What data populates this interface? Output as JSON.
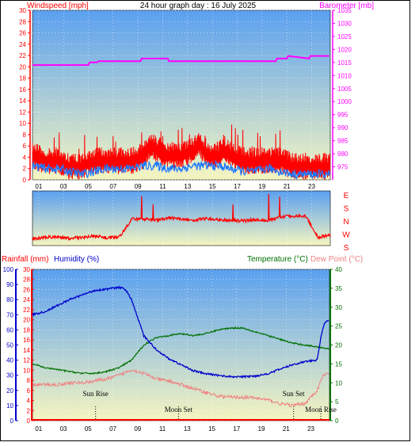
{
  "header": {
    "left_title": "Windspeed [mph]",
    "center_title": "24 hour graph day : 16 July 2025",
    "right_title": "Barometer [mb]"
  },
  "colors": {
    "wind": "#ff0000",
    "wind_avg": "#1e78ff",
    "barometer": "#ff00ff",
    "direction": "#ff0000",
    "humidity": "#0000cc",
    "temperature": "#007000",
    "dewpoint": "#f08080",
    "rain_axis": "#ff0000",
    "panel_top": "#5aa0f0",
    "panel_bottom": "#f5f5c0"
  },
  "chart_data": [
    {
      "type": "line",
      "name": "wind-barometer",
      "xlabel": "",
      "x_ticks": [
        "01",
        "03",
        "05",
        "07",
        "09",
        "11",
        "13",
        "15",
        "17",
        "19",
        "21",
        "23"
      ],
      "left_axis": {
        "label": "Windspeed [mph]",
        "ylim": [
          0,
          30
        ],
        "ticks": [
          "0",
          "2",
          "4",
          "6",
          "8",
          "10",
          "12",
          "14",
          "16",
          "18",
          "20",
          "22",
          "24",
          "26",
          "28",
          "30"
        ]
      },
      "right_axis": {
        "label": "Barometer [mb]",
        "ylim": [
          970,
          1035
        ],
        "ticks": [
          "975",
          "980",
          "985",
          "990",
          "995",
          "1000",
          "1005",
          "1010",
          "1015",
          "1020",
          "1025",
          "1030",
          "1035"
        ]
      },
      "series": [
        {
          "name": "Windspeed [mph]",
          "axis": "left",
          "x": [
            0,
            1,
            2,
            3,
            4,
            5,
            6,
            7,
            8,
            9,
            9.5,
            10,
            11,
            12,
            13,
            13.5,
            14,
            15,
            15.5,
            16,
            17,
            18,
            19,
            20,
            21,
            22,
            23,
            24
          ],
          "y": [
            5,
            4,
            4,
            3,
            3,
            4,
            4,
            4,
            4,
            5,
            7,
            6,
            5,
            5,
            6,
            7,
            5,
            5,
            6,
            5,
            4,
            4,
            4,
            4,
            3,
            3,
            3,
            3
          ]
        },
        {
          "name": "Windspeed avg",
          "axis": "left",
          "x": [
            0,
            1,
            2,
            3,
            4,
            5,
            6,
            7,
            8,
            9,
            10,
            11,
            12,
            13,
            14,
            15,
            16,
            17,
            18,
            19,
            20,
            21,
            22,
            23,
            24
          ],
          "y": [
            2.5,
            2,
            2,
            1.5,
            1,
            1.5,
            2,
            2,
            2,
            2.5,
            2.5,
            2,
            2,
            2.5,
            2.5,
            2.5,
            2,
            1.5,
            1.5,
            2,
            1.5,
            1,
            1,
            1,
            1
          ]
        },
        {
          "name": "Barometer [mb]",
          "axis": "right",
          "x": [
            0,
            4.5,
            4.6,
            5.2,
            5.3,
            8.7,
            8.8,
            10.9,
            11,
            19.6,
            19.7,
            20.5,
            20.6,
            22.3,
            22.4,
            23.9
          ],
          "y": [
            1014,
            1014,
            1015,
            1015,
            1015.5,
            1015.5,
            1016.5,
            1016.5,
            1015.5,
            1015.5,
            1016.5,
            1016.5,
            1017.5,
            1016.5,
            1017.5,
            1017.5
          ]
        }
      ]
    },
    {
      "type": "line",
      "name": "wind-direction",
      "y_ticks": [
        "E",
        "S",
        "N",
        "W",
        "S"
      ],
      "series": [
        {
          "name": "Wind direction",
          "x": [
            0,
            1,
            2,
            3,
            4,
            5,
            6,
            7,
            8,
            9,
            10,
            11,
            12,
            13,
            14,
            15,
            16,
            17,
            18,
            19,
            20,
            21,
            22,
            23,
            24
          ],
          "y": [
            0.88,
            0.85,
            0.85,
            0.87,
            0.85,
            0.82,
            0.86,
            0.84,
            0.52,
            0.51,
            0.53,
            0.49,
            0.52,
            0.53,
            0.51,
            0.53,
            0.53,
            0.55,
            0.52,
            0.54,
            0.48,
            0.46,
            0.45,
            0.85,
            0.8
          ]
        }
      ]
    },
    {
      "type": "line",
      "name": "rain-humidity-temperature",
      "x_ticks": [
        "01",
        "03",
        "05",
        "07",
        "09",
        "11",
        "13",
        "15",
        "17",
        "19",
        "21",
        "23"
      ],
      "rain_axis": {
        "label": "Rainfall (mm)",
        "ylim": [
          0,
          30
        ],
        "ticks": [
          "0",
          "2",
          "4",
          "6",
          "8",
          "10",
          "12",
          "14",
          "16",
          "18",
          "20",
          "22",
          "24",
          "26",
          "28",
          "30"
        ]
      },
      "humidity_axis": {
        "label": "Humidity (%)",
        "ylim": [
          0,
          100
        ],
        "ticks": [
          "0",
          "10",
          "20",
          "30",
          "40",
          "50",
          "60",
          "70",
          "80",
          "90",
          "100"
        ]
      },
      "temperature_axis": {
        "label": "Temperature (°C)",
        "ylim": [
          0,
          40
        ],
        "ticks": [
          "0",
          "5",
          "10",
          "15",
          "20",
          "25",
          "30",
          "35",
          "40"
        ]
      },
      "dewpoint_label": "Dew Point (°C)",
      "series": [
        {
          "name": "Humidity (%)",
          "axis": "humidity",
          "x": [
            0,
            1,
            2,
            3,
            4,
            5,
            6,
            7,
            7.5,
            8,
            8.5,
            9,
            10,
            11,
            12,
            13,
            14,
            15,
            16,
            17,
            18,
            19,
            20,
            21,
            22,
            23,
            23.3,
            23.6,
            24
          ],
          "y": [
            70,
            72,
            76,
            80,
            83,
            86,
            87,
            88,
            87,
            80,
            68,
            56,
            47,
            41,
            37,
            33,
            31,
            30,
            29,
            29,
            29.5,
            31,
            34,
            37,
            39,
            40,
            55,
            65,
            66
          ]
        },
        {
          "name": "Temperature (°C)",
          "axis": "temperature",
          "x": [
            0,
            1,
            2,
            3,
            4,
            5,
            6,
            7,
            8,
            9,
            10,
            11,
            12,
            13,
            14,
            15,
            16,
            17,
            18,
            19,
            20,
            21,
            22,
            23,
            24
          ],
          "y": [
            15,
            14,
            13.5,
            13,
            12.5,
            12.5,
            13,
            14,
            16,
            20,
            22,
            22.5,
            23,
            22.5,
            23,
            24,
            24.5,
            24.5,
            23.5,
            22.5,
            21.5,
            20.5,
            20,
            19.5,
            19
          ]
        },
        {
          "name": "Dew Point (°C)",
          "axis": "temperature",
          "x": [
            0,
            1,
            2,
            3,
            4,
            5,
            6,
            7,
            8,
            9,
            10,
            11,
            12,
            13,
            14,
            15,
            16,
            17,
            18,
            19,
            20,
            21,
            22,
            23,
            23.5,
            24
          ],
          "y": [
            9.5,
            9.5,
            9.5,
            10,
            10,
            10.5,
            11,
            12,
            13.5,
            12.5,
            11,
            10.5,
            9.5,
            8.5,
            7.5,
            6.5,
            6.2,
            6.2,
            6,
            5.5,
            4.5,
            4,
            4.5,
            8,
            12,
            12.5
          ]
        },
        {
          "name": "Rainfall (mm)",
          "axis": "rain",
          "x": [
            0,
            24
          ],
          "y": [
            0,
            0
          ]
        }
      ],
      "annotations": [
        {
          "label": "Sun Rise",
          "hour": 5.1
        },
        {
          "label": "Moon Set",
          "hour": 11.8
        },
        {
          "label": "Sun Set",
          "hour": 21.1
        },
        {
          "label": "Moon Rise",
          "hour": 23.3
        }
      ]
    }
  ]
}
